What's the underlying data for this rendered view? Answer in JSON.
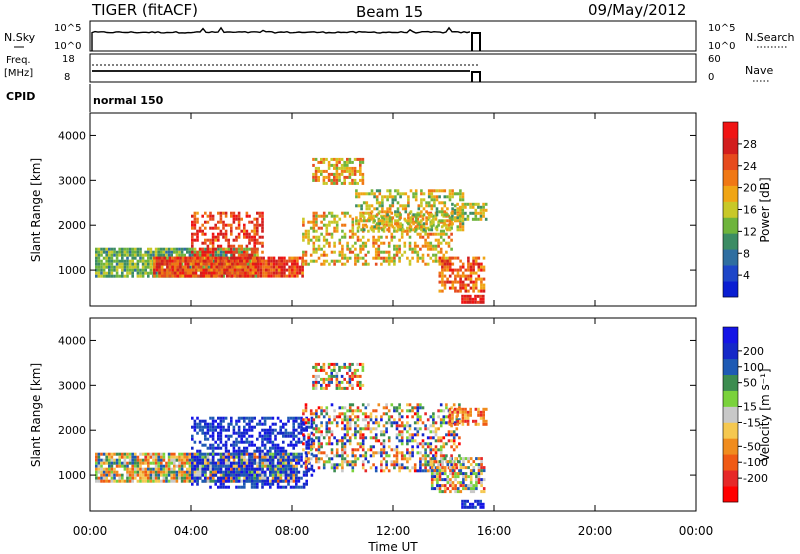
{
  "header": {
    "title": "TIGER (fitACF)",
    "beam": "Beam 15",
    "date": "09/May/2012"
  },
  "top_panels": {
    "nsky_label": "N.Sky",
    "nsearch_label": "N.Search",
    "left_ticks_a": [
      "10^5",
      "10^0"
    ],
    "right_ticks_a": [
      "10^5",
      "10^0"
    ],
    "freq_label_line1": "Freq.",
    "freq_label_line2": "[MHz]",
    "nave_label": "Nave",
    "left_ticks_b": [
      "18",
      "8"
    ],
    "right_ticks_b": [
      "60",
      "0"
    ],
    "cpid_label": "CPID",
    "cpid_value": "normal 150"
  },
  "colors": {
    "power": [
      "#0a1ed2",
      "#1e46c8",
      "#2f6ea0",
      "#3c8c64",
      "#6eb43c",
      "#c8c828",
      "#f0a514",
      "#f07814",
      "#e64b1e",
      "#d21e1e",
      "#f01414"
    ],
    "velocity": [
      "#ff0000",
      "#e62828",
      "#f05a14",
      "#f08c1e",
      "#f5c850",
      "#c8c8c8",
      "#7ad23c",
      "#3c8c50",
      "#1e5ab4",
      "#1428c8",
      "#1414e6"
    ]
  },
  "chart_data": [
    {
      "type": "heatmap",
      "name": "power",
      "ylabel": "Slant Range [km]",
      "ylim": [
        200,
        4500
      ],
      "xlim_hours": [
        0,
        24
      ],
      "x_ticks": [
        "00:00",
        "04:00",
        "08:00",
        "12:00",
        "16:00",
        "20:00",
        "00:00"
      ],
      "y_ticks": [
        "1000",
        "2000",
        "3000",
        "4000"
      ],
      "colorbar_label": "Power [dB]",
      "colorbar_ticks": [
        "4",
        "8",
        "12",
        "16",
        "20",
        "24",
        "28"
      ],
      "colorbar_range": [
        0,
        32
      ],
      "blobs": [
        {
          "x0": 0.2,
          "x1": 6.6,
          "y0": 850,
          "y1": 1500,
          "lo": 8,
          "hi": 17,
          "density": 0.85
        },
        {
          "x0": 2.5,
          "x1": 8.4,
          "y0": 850,
          "y1": 1300,
          "lo": 20,
          "hi": 31,
          "density": 0.9
        },
        {
          "x0": 4.0,
          "x1": 6.8,
          "y0": 1200,
          "y1": 2300,
          "lo": 20,
          "hi": 31,
          "density": 0.55
        },
        {
          "x0": 8.4,
          "x1": 14.3,
          "y0": 1100,
          "y1": 2300,
          "lo": 12,
          "hi": 24,
          "density": 0.45
        },
        {
          "x0": 10.5,
          "x1": 14.8,
          "y0": 1900,
          "y1": 2800,
          "lo": 10,
          "hi": 22,
          "density": 0.5
        },
        {
          "x0": 8.8,
          "x1": 10.8,
          "y0": 2900,
          "y1": 3500,
          "lo": 12,
          "hi": 26,
          "density": 0.6
        },
        {
          "x0": 13.8,
          "x1": 15.6,
          "y0": 500,
          "y1": 1300,
          "lo": 18,
          "hi": 30,
          "density": 0.7
        },
        {
          "x0": 14.3,
          "x1": 15.7,
          "y0": 2100,
          "y1": 2500,
          "lo": 10,
          "hi": 20,
          "density": 0.6
        },
        {
          "x0": 14.7,
          "x1": 15.6,
          "y0": 280,
          "y1": 450,
          "lo": 24,
          "hi": 31,
          "density": 0.9
        }
      ]
    },
    {
      "type": "heatmap",
      "name": "velocity",
      "ylabel": "Slant Range [km]",
      "ylim": [
        200,
        4500
      ],
      "xlim_hours": [
        0,
        24
      ],
      "x_ticks": [
        "00:00",
        "04:00",
        "08:00",
        "12:00",
        "16:00",
        "20:00",
        "00:00"
      ],
      "xlabel": "Time UT",
      "y_ticks": [
        "1000",
        "2000",
        "3000",
        "4000"
      ],
      "colorbar_label": "Velocity [m s⁻¹]",
      "colorbar_ticks": [
        "-200",
        "-100",
        "-50",
        "-15",
        "15",
        "50",
        "100",
        "200"
      ],
      "colorbar_range": [
        -250,
        250
      ],
      "blobs": [
        {
          "x0": 0.2,
          "x1": 8.2,
          "y0": 850,
          "y1": 1500,
          "lo": -160,
          "hi": 160,
          "density": 0.85
        },
        {
          "x0": 4.0,
          "x1": 8.8,
          "y0": 700,
          "y1": 2300,
          "lo": 120,
          "hi": 245,
          "density": 0.55
        },
        {
          "x0": 8.4,
          "x1": 14.6,
          "y0": 1100,
          "y1": 2600,
          "lo": -220,
          "hi": 220,
          "density": 0.45
        },
        {
          "x0": 8.8,
          "x1": 10.8,
          "y0": 2900,
          "y1": 3500,
          "lo": -230,
          "hi": 180,
          "density": 0.6
        },
        {
          "x0": 13.5,
          "x1": 15.6,
          "y0": 600,
          "y1": 1400,
          "lo": -200,
          "hi": 200,
          "density": 0.65
        },
        {
          "x0": 14.2,
          "x1": 15.7,
          "y0": 2100,
          "y1": 2500,
          "lo": -200,
          "hi": -40,
          "density": 0.6
        },
        {
          "x0": 14.7,
          "x1": 15.6,
          "y0": 280,
          "y1": 450,
          "lo": 150,
          "hi": 245,
          "density": 0.9
        }
      ]
    }
  ]
}
